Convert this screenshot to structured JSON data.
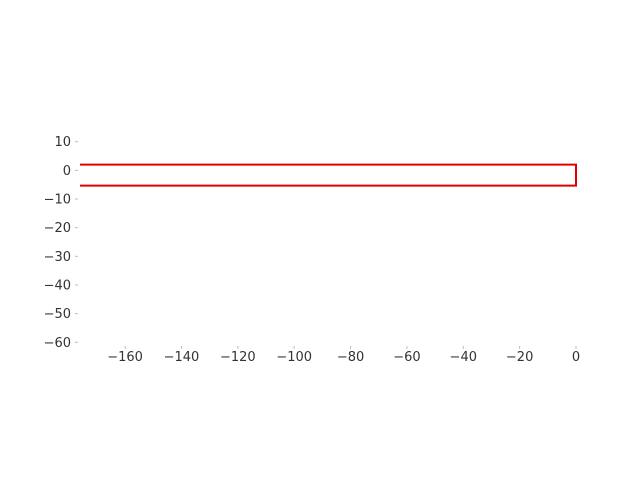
{
  "chart_data": {
    "type": "line",
    "title": "",
    "xlabel": "",
    "ylabel": "",
    "xlim": [
      -176,
      0
    ],
    "ylim": [
      -62,
      12
    ],
    "grid": false,
    "x_ticks": [
      -160,
      -140,
      -120,
      -100,
      -80,
      -60,
      -40,
      -20,
      0
    ],
    "x_tick_labels": [
      "−160",
      "−140",
      "−120",
      "−100",
      "−80",
      "−60",
      "−40",
      "−20",
      "0"
    ],
    "y_ticks": [
      10,
      0,
      -10,
      -20,
      -30,
      -40,
      -50,
      -60
    ],
    "y_tick_labels": [
      "10",
      "0",
      "−10",
      "−20",
      "−30",
      "−40",
      "−50",
      "−60"
    ],
    "series": [
      {
        "color": "#e00000",
        "points": [
          [
            -176,
            2
          ],
          [
            0,
            2
          ],
          [
            0,
            -3.2
          ],
          [
            0,
            -5.3
          ],
          [
            -176,
            -5.3
          ]
        ]
      }
    ]
  }
}
